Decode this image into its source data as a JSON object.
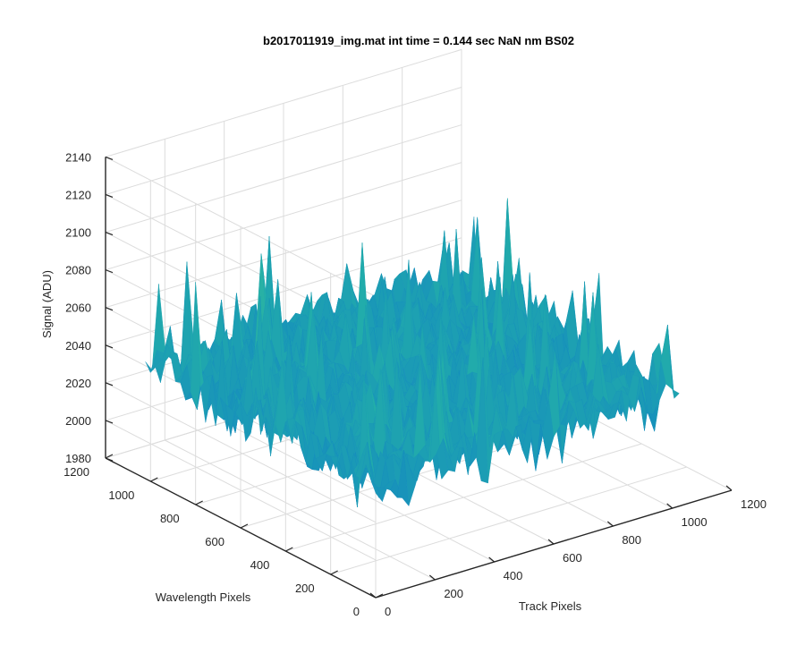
{
  "chart_data": {
    "type": "surface",
    "title": "b2017011919_img.mat int time = 0.144 sec  NaN nm BS02",
    "xlabel": "Track Pixels",
    "ylabel": "Wavelength Pixels",
    "zlabel": "Signal (ADU)",
    "xlim": [
      0,
      1200
    ],
    "ylim": [
      0,
      1200
    ],
    "zlim": [
      1980,
      2140
    ],
    "xticks": [
      "0",
      "200",
      "400",
      "600",
      "800",
      "1000",
      "1200"
    ],
    "yticks": [
      "0",
      "200",
      "400",
      "600",
      "800",
      "1000",
      "1200"
    ],
    "zticks": [
      "1980",
      "2000",
      "2020",
      "2040",
      "2060",
      "2080",
      "2100",
      "2120",
      "2140"
    ],
    "grid": true,
    "surface": {
      "x_range": [
        1,
        1024
      ],
      "y_range": [
        1,
        1024
      ],
      "mean_signal": 2040,
      "min_signal": 1995,
      "max_signal": 2130,
      "colormap": "parula"
    },
    "colors": {
      "low": "#0a6fd0",
      "mid": "#23b0a8",
      "high": "#e8c83a"
    }
  }
}
